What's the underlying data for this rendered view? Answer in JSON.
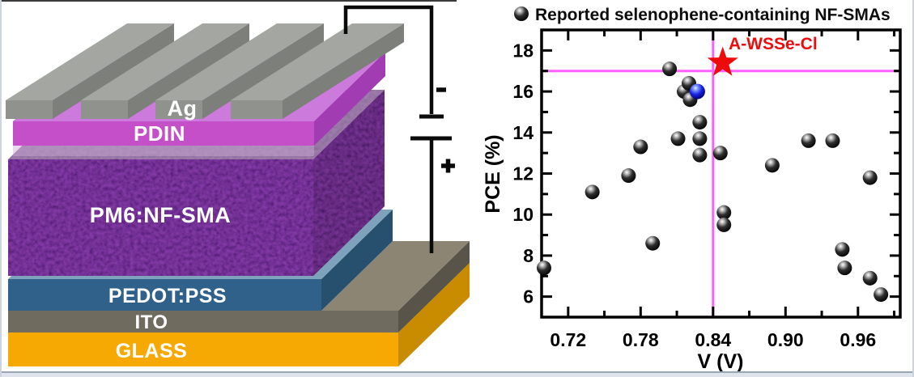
{
  "page": {
    "background": "#ffffff",
    "edge_color": "#dfe3ec"
  },
  "device": {
    "label_color": "#ffffff",
    "layers": [
      {
        "name": "glass",
        "label": "GLASS",
        "colors": {
          "front": "#F6A902",
          "side": "#C98C00"
        }
      },
      {
        "name": "ito",
        "label": "ITO",
        "colors": {
          "front": "#6F6B5F",
          "side": "#585449",
          "top": "#8C8574"
        }
      },
      {
        "name": "pedot-pss",
        "label": "PEDOT:PSS",
        "colors": {
          "front": "#30618B",
          "side": "#27506F",
          "top": "#7FA2BC"
        }
      },
      {
        "name": "active-layer",
        "label": "PM6:NF-SMA",
        "colors": {
          "front": "#3B1163",
          "side": "#2A0B47",
          "top": "#8E8098"
        }
      },
      {
        "name": "pdin",
        "label": "PDIN",
        "colors": {
          "front": "#C44FC9",
          "side": "#A23CB2",
          "top": "#CC7ADC"
        }
      },
      {
        "name": "ag-electrode",
        "label": "Ag",
        "colors": {
          "front": "#8F928D",
          "side": "#7C7F7A",
          "top": "#A3A6A1"
        }
      }
    ],
    "circuit": {
      "negative_label": "-",
      "positive_label": "+",
      "wire_color": "#0a0a0a"
    }
  },
  "chart_data": {
    "type": "scatter",
    "legend": {
      "marker": "black-sphere",
      "label": "Reported selenophene-containing NF-SMAs",
      "position": "top"
    },
    "xlabel": "V (V)",
    "ylabel": "PCE (%)",
    "xlim": [
      0.698,
      0.995
    ],
    "ylim": [
      5.0,
      19.0
    ],
    "grid": false,
    "x_ticks": {
      "values": [
        0.72,
        0.78,
        0.84,
        0.9,
        0.96
      ],
      "labels": [
        "0.72",
        "0.78",
        "0.84",
        "0.90",
        "0.96"
      ],
      "minor": [
        0.75,
        0.81,
        0.87,
        0.93,
        0.99
      ]
    },
    "y_ticks": {
      "values": [
        6,
        8,
        10,
        12,
        14,
        16,
        18
      ],
      "labels": [
        "6",
        "8",
        "10",
        "12",
        "14",
        "16",
        "18"
      ],
      "minor": [
        7,
        9,
        11,
        13,
        15,
        17
      ]
    },
    "crosshair": {
      "x": 0.84,
      "y": 17.0,
      "color": "#FF5FFF"
    },
    "series": [
      {
        "name": "reported-selenophene-NF-SMAs",
        "marker": "sphere",
        "color": "#111111",
        "points": [
          [
            0.7,
            7.4
          ],
          [
            0.74,
            11.1
          ],
          [
            0.77,
            11.9
          ],
          [
            0.78,
            13.3
          ],
          [
            0.79,
            8.6
          ],
          [
            0.804,
            17.1
          ],
          [
            0.811,
            13.7
          ],
          [
            0.816,
            16.0
          ],
          [
            0.82,
            16.4
          ],
          [
            0.821,
            15.6
          ],
          [
            0.829,
            14.5
          ],
          [
            0.829,
            13.7
          ],
          [
            0.829,
            12.9
          ],
          [
            0.846,
            13.0
          ],
          [
            0.849,
            10.1
          ],
          [
            0.849,
            9.5
          ],
          [
            0.889,
            12.4
          ],
          [
            0.919,
            13.6
          ],
          [
            0.939,
            13.6
          ],
          [
            0.947,
            8.3
          ],
          [
            0.949,
            7.4
          ],
          [
            0.97,
            11.8
          ],
          [
            0.97,
            6.9
          ],
          [
            0.979,
            6.1
          ]
        ]
      },
      {
        "name": "blue-highlighted-point",
        "marker": "sphere",
        "color": "#1a22e8",
        "points": [
          [
            0.827,
            16.0
          ]
        ]
      },
      {
        "name": "A-WSSe-Cl",
        "marker": "star",
        "color": "#EE0B0B",
        "points": [
          [
            0.848,
            17.4
          ]
        ]
      }
    ],
    "annotation": {
      "text": "A-WSSe-Cl",
      "color": "#EE0B0B"
    }
  }
}
